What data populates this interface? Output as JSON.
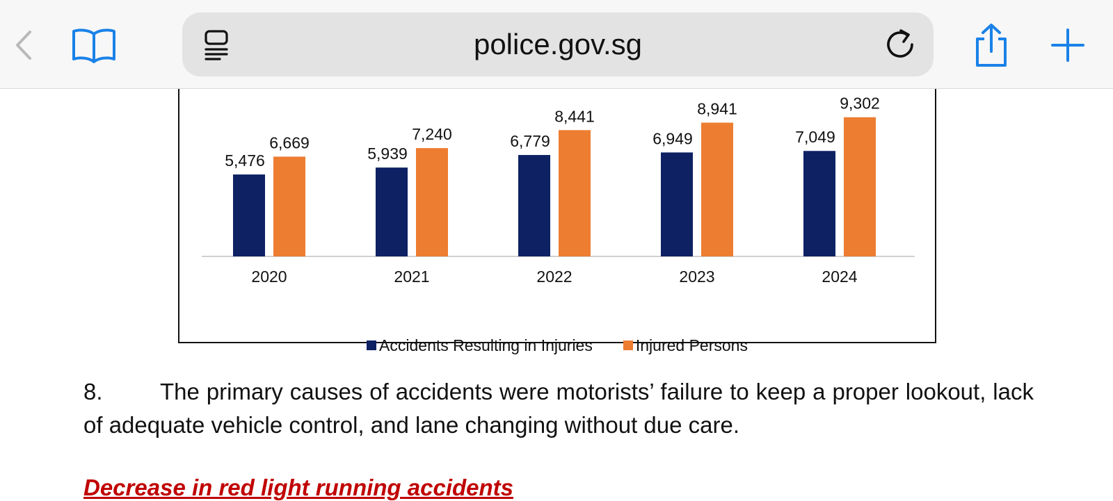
{
  "browser": {
    "url": "police.gov.sg"
  },
  "icons": {
    "back": "chevron-left-icon",
    "bookmarks": "book-icon",
    "reader": "reader-mode-icon",
    "reload": "reload-icon",
    "share": "share-icon",
    "new_tab": "plus-icon"
  },
  "colors": {
    "accent": "#1a82e8",
    "series_a": "#0d2163",
    "series_b": "#ed7d31",
    "heading": "#c00000"
  },
  "chart_data": {
    "type": "bar",
    "categories": [
      "2020",
      "2021",
      "2022",
      "2023",
      "2024"
    ],
    "series": [
      {
        "name": "Accidents Resulting in Injuries",
        "values": [
          5476,
          5939,
          6779,
          6949,
          7049
        ],
        "labels": [
          "5,476",
          "5,939",
          "6,779",
          "6,949",
          "7,049"
        ],
        "color": "#0d2163"
      },
      {
        "name": "Injured Persons",
        "values": [
          6669,
          7240,
          8441,
          8941,
          9302
        ],
        "labels": [
          "6,669",
          "7,240",
          "8,441",
          "8,941",
          "9,302"
        ],
        "color": "#ed7d31"
      }
    ],
    "legend_position": "bottom",
    "grid": false
  },
  "content": {
    "para_number": "8.",
    "para_text": "The primary causes of accidents were motorists’ failure to keep a proper lookout, lack of adequate vehicle control, and lane changing without due care.",
    "heading": "Decrease in red light running accidents"
  }
}
